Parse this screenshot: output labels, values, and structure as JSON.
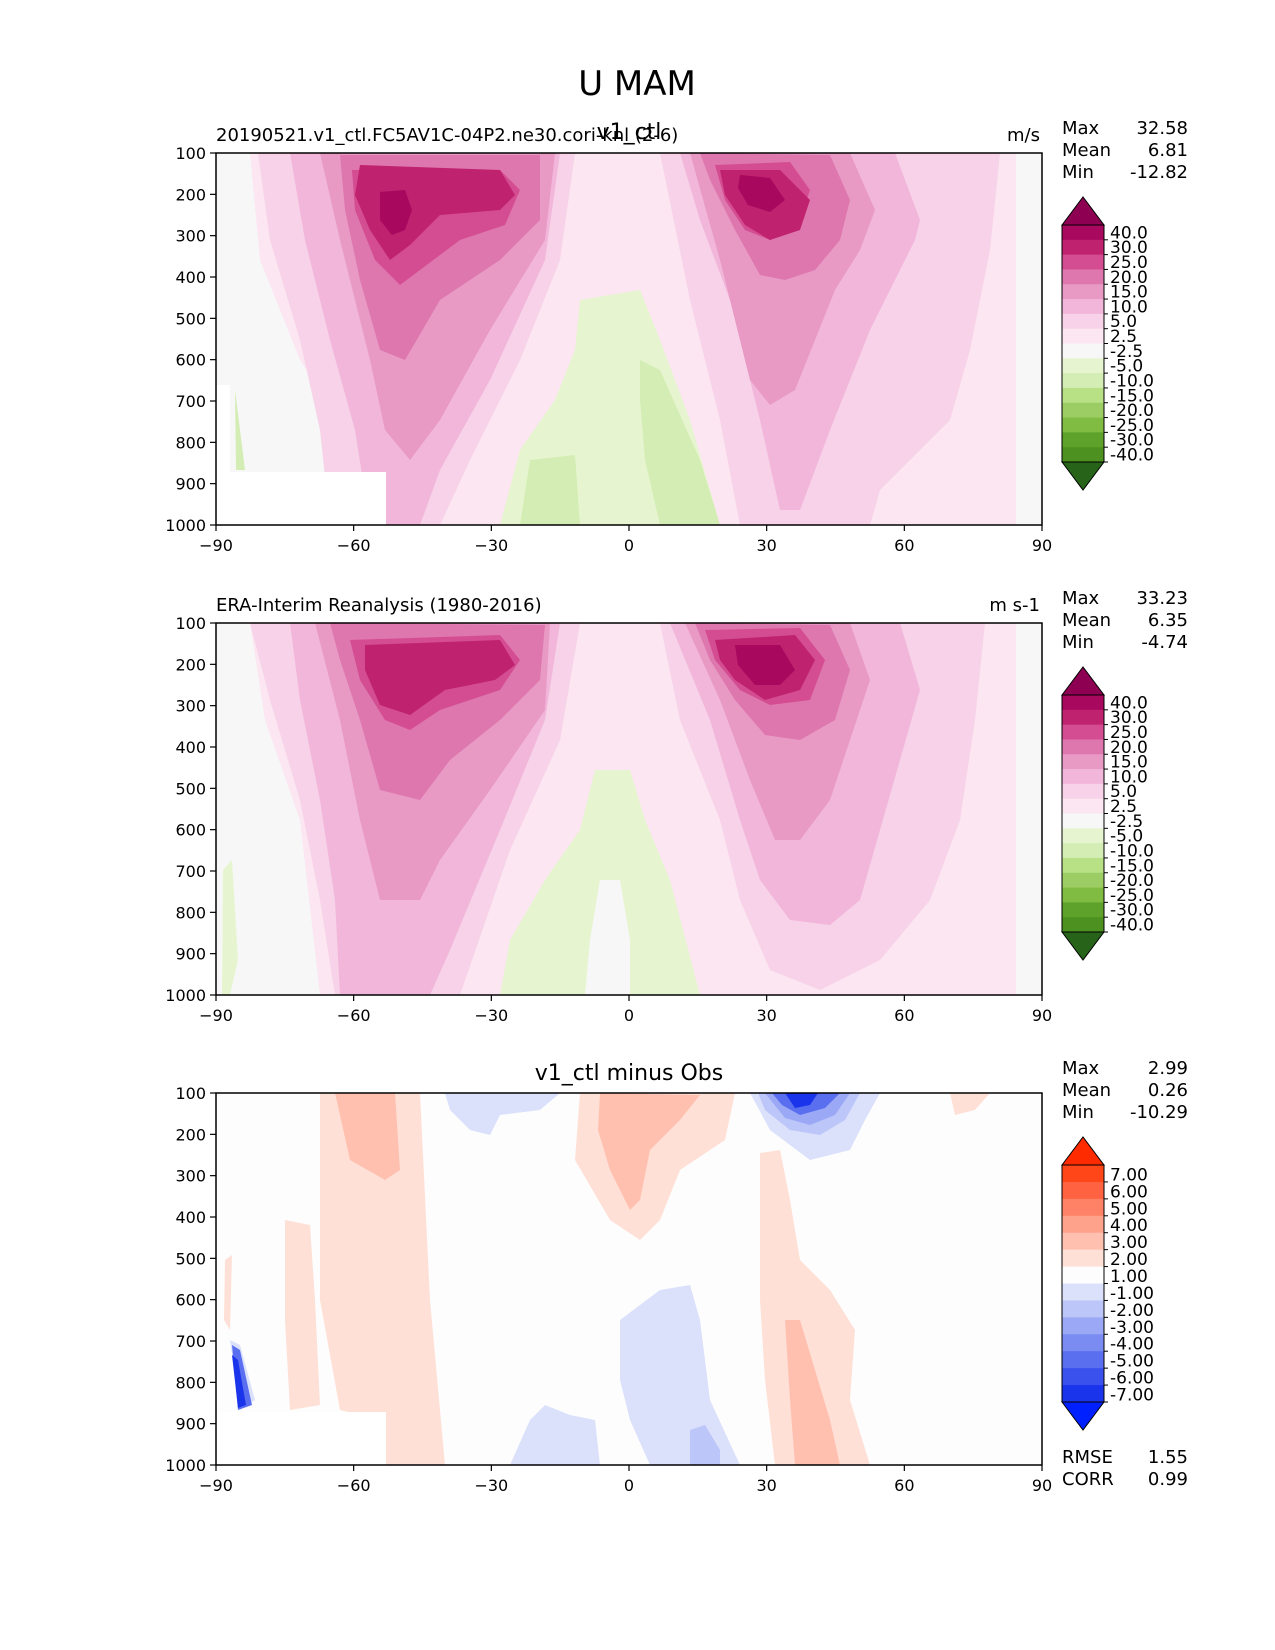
{
  "figure": {
    "title": "U MAM"
  },
  "chart_data": [
    {
      "type": "contour",
      "panel": "model",
      "left_title": "20190521.v1_ctl.FC5AV1C-04P2.ne30.cori-knl (2-6)",
      "center_title": "v1_ctl",
      "units": "m/s",
      "stats": {
        "labels": [
          "Max",
          "Mean",
          "Min"
        ],
        "values": [
          "32.58",
          "6.81",
          "-12.82"
        ]
      },
      "x_ticks": [
        "−90",
        "−60",
        "−30",
        "0",
        "30",
        "60",
        "90"
      ],
      "y_ticks": [
        "100",
        "200",
        "300",
        "400",
        "500",
        "600",
        "700",
        "800",
        "900",
        "1000"
      ],
      "xlim": [
        -90,
        90
      ],
      "ylim": [
        1000,
        100
      ],
      "colorbar": {
        "labels": [
          "40.0",
          "30.0",
          "25.0",
          "20.0",
          "15.0",
          "10.0",
          "5.0",
          "2.5",
          "-2.5",
          "-5.0",
          "-10.0",
          "-15.0",
          "-20.0",
          "-25.0",
          "-30.0",
          "-40.0"
        ],
        "colors": [
          "#8e0152",
          "#a8085e",
          "#bf226f",
          "#d44d93",
          "#de77ae",
          "#e89ac5",
          "#f1b6da",
          "#f7d2e8",
          "#fbe6f1",
          "#f7f7f7",
          "#e6f5d0",
          "#d3edb4",
          "#b8e186",
          "#9ccd64",
          "#7fbc41",
          "#5ea22b",
          "#4d9221",
          "#276419"
        ],
        "extend": "both"
      },
      "features": [
        {
          "name": "southern jet",
          "lat": -50,
          "plev": 250,
          "peak": 32.58
        },
        {
          "name": "northern jet",
          "lat": 30,
          "plev": 200,
          "peak": 30
        },
        {
          "name": "tropical easterlies",
          "lat": 5,
          "plev": 800,
          "peak": -10
        }
      ]
    },
    {
      "type": "contour",
      "panel": "obs",
      "left_title": "ERA-Interim Reanalysis (1980-2016)",
      "center_title": "",
      "units": "m s-1",
      "stats": {
        "labels": [
          "Max",
          "Mean",
          "Min"
        ],
        "values": [
          "33.23",
          "6.35",
          "-4.74"
        ]
      },
      "x_ticks": [
        "−90",
        "−60",
        "−30",
        "0",
        "30",
        "60",
        "90"
      ],
      "y_ticks": [
        "100",
        "200",
        "300",
        "400",
        "500",
        "600",
        "700",
        "800",
        "900",
        "1000"
      ],
      "xlim": [
        -90,
        90
      ],
      "ylim": [
        1000,
        100
      ],
      "colorbar": {
        "labels": [
          "40.0",
          "30.0",
          "25.0",
          "20.0",
          "15.0",
          "10.0",
          "5.0",
          "2.5",
          "-2.5",
          "-5.0",
          "-10.0",
          "-15.0",
          "-20.0",
          "-25.0",
          "-30.0",
          "-40.0"
        ],
        "colors": [
          "#8e0152",
          "#a8085e",
          "#bf226f",
          "#d44d93",
          "#de77ae",
          "#e89ac5",
          "#f1b6da",
          "#f7d2e8",
          "#fbe6f1",
          "#f7f7f7",
          "#e6f5d0",
          "#d3edb4",
          "#b8e186",
          "#9ccd64",
          "#7fbc41",
          "#5ea22b",
          "#4d9221",
          "#276419"
        ],
        "extend": "both"
      },
      "features": [
        {
          "name": "southern jet",
          "lat": -48,
          "plev": 230,
          "peak": 30
        },
        {
          "name": "northern jet",
          "lat": 30,
          "plev": 180,
          "peak": 33.23
        },
        {
          "name": "tropical easterlies",
          "lat": 0,
          "plev": 700,
          "peak": -4.74
        }
      ]
    },
    {
      "type": "contour",
      "panel": "diff",
      "left_title": "",
      "center_title": "v1_ctl minus Obs",
      "units": "",
      "stats": {
        "labels": [
          "Max",
          "Mean",
          "Min"
        ],
        "values": [
          "2.99",
          "0.26",
          "-10.29"
        ]
      },
      "extra_stats": {
        "labels": [
          "RMSE",
          "CORR"
        ],
        "values": [
          "1.55",
          "0.99"
        ]
      },
      "x_ticks": [
        "−90",
        "−60",
        "−30",
        "0",
        "30",
        "60",
        "90"
      ],
      "y_ticks": [
        "100",
        "200",
        "300",
        "400",
        "500",
        "600",
        "700",
        "800",
        "900",
        "1000"
      ],
      "xlim": [
        -90,
        90
      ],
      "ylim": [
        1000,
        100
      ],
      "colorbar": {
        "labels": [
          "7.00",
          "6.00",
          "5.00",
          "4.00",
          "3.00",
          "2.00",
          "1.00",
          "-1.00",
          "-2.00",
          "-3.00",
          "-4.00",
          "-5.00",
          "-6.00",
          "-7.00"
        ],
        "colors": [
          "#ff2b00",
          "#ff4618",
          "#ff6240",
          "#ff8266",
          "#ffa28c",
          "#ffc0b0",
          "#ffe0d6",
          "#fdfdfd",
          "#dbe1fb",
          "#bcc6f8",
          "#9aa8f5",
          "#7a8bf2",
          "#5a6ef0",
          "#3a51ee",
          "#1a34ec",
          "#0020ff"
        ],
        "extend": "both"
      },
      "features": [
        {
          "name": "negative bias upper troposphere",
          "lat": 37,
          "plev": 100,
          "peak": -10.29
        },
        {
          "name": "positive bias",
          "lat": -50,
          "plev": 200,
          "peak": 2.99
        }
      ]
    }
  ]
}
